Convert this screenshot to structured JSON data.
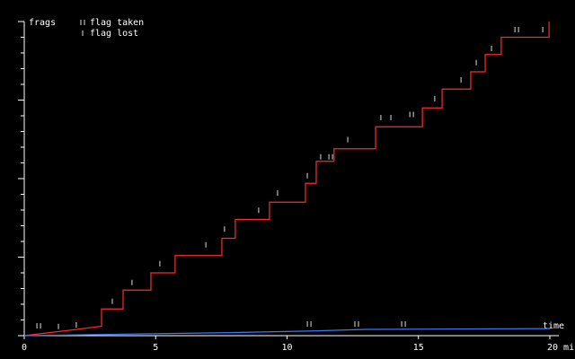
{
  "chart_data": {
    "type": "line",
    "y_label": "frags",
    "x_label": "time",
    "xlim": [
      0,
      20
    ],
    "xticks": [
      0,
      5,
      10,
      15,
      {
        "value": 20,
        "label": "20 min"
      }
    ],
    "ylim": [
      0,
      200
    ],
    "yticks": [
      0,
      10,
      20,
      30,
      40,
      50,
      60,
      70,
      80,
      90,
      100,
      110,
      120,
      130,
      140,
      150,
      160,
      170,
      180,
      190,
      200
    ],
    "series": [
      {
        "color": "#ff2a2a",
        "x": [
          0,
          1,
          2,
          2.94,
          2.94,
          3.76,
          3.76,
          4.82,
          4.82,
          5.74,
          5.74,
          7.52,
          7.52,
          8.03,
          8.03,
          9.33,
          9.33,
          10.7,
          10.7,
          11.11,
          11.11,
          11.79,
          11.79,
          13.37,
          13.37,
          15.15,
          15.15,
          15.9,
          15.9,
          16.99,
          16.99,
          17.54,
          17.54,
          18.15,
          18.15,
          19.97,
          19.97
        ],
        "values": [
          0,
          2,
          4,
          6,
          17,
          17,
          29,
          29,
          40,
          40,
          51,
          51,
          62,
          62,
          74,
          74,
          85,
          85,
          97,
          97,
          111,
          111,
          119,
          119,
          133,
          133,
          145,
          145,
          157,
          157,
          168,
          168,
          179,
          179,
          190,
          190,
          200
        ]
      },
      {
        "color": "#3a78ff",
        "x": [
          0,
          4,
          8,
          11,
          13,
          20
        ],
        "values": [
          0,
          1,
          2,
          3,
          4,
          4.5
        ]
      }
    ],
    "markers": [
      {
        "name": "flag taken",
        "color": "#dddddd",
        "x": [
          0.55,
          11.66,
          14.74,
          18.74,
          10.84,
          12.65,
          14.43
        ],
        "values": [
          3.4,
          111,
          138,
          192,
          4.6,
          4.6,
          4.6
        ]
      },
      {
        "name": "flag lost",
        "color": "#dddddd",
        "x": [
          1.3,
          1.98,
          3.35,
          4.1,
          5.16,
          6.91,
          7.62,
          8.92,
          9.64,
          10.77,
          11.28,
          12.31,
          13.57,
          13.95,
          15.62,
          16.62,
          17.2,
          17.78,
          19.73
        ],
        "values": [
          3,
          4,
          19,
          31,
          43,
          55,
          65,
          77,
          88,
          99,
          111,
          122,
          136,
          136,
          148,
          160,
          171,
          180,
          192
        ]
      }
    ]
  }
}
